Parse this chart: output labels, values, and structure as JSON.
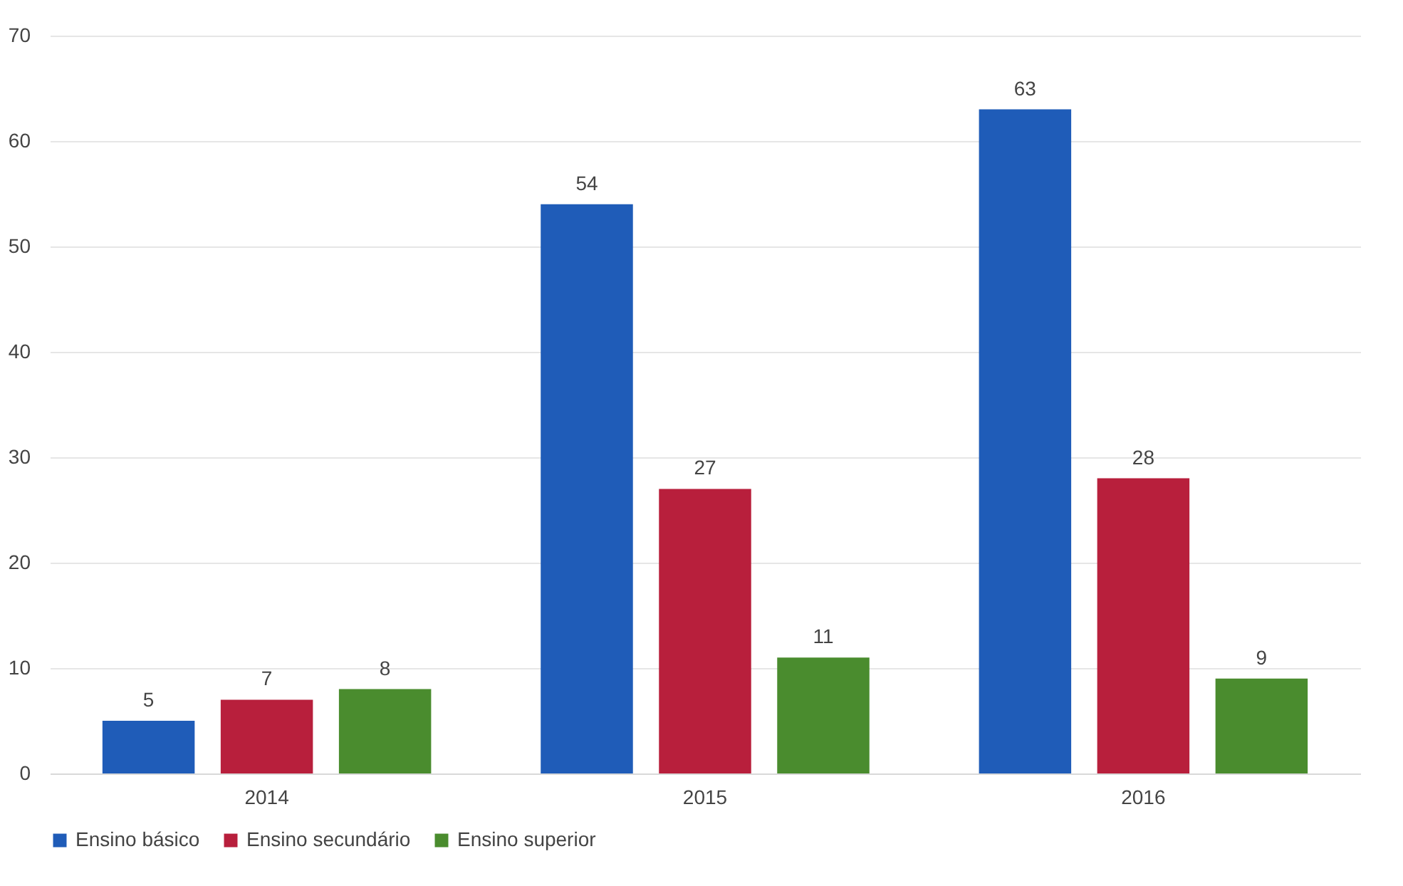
{
  "chart_data": {
    "type": "bar",
    "categories": [
      "2014",
      "2015",
      "2016"
    ],
    "series": [
      {
        "name": "Ensino básico",
        "color": "#1f5cb8",
        "values": [
          5,
          54,
          63
        ]
      },
      {
        "name": "Ensino secundário",
        "color": "#b81f3c",
        "values": [
          7,
          27,
          28
        ]
      },
      {
        "name": "Ensino superior",
        "color": "#4a8c2e",
        "values": [
          8,
          11,
          9
        ]
      }
    ],
    "ylim": [
      0,
      70
    ],
    "yticks": [
      0,
      10,
      20,
      30,
      40,
      50,
      60,
      70
    ],
    "grid": "y",
    "legend": "bottom",
    "data_labels": true
  }
}
